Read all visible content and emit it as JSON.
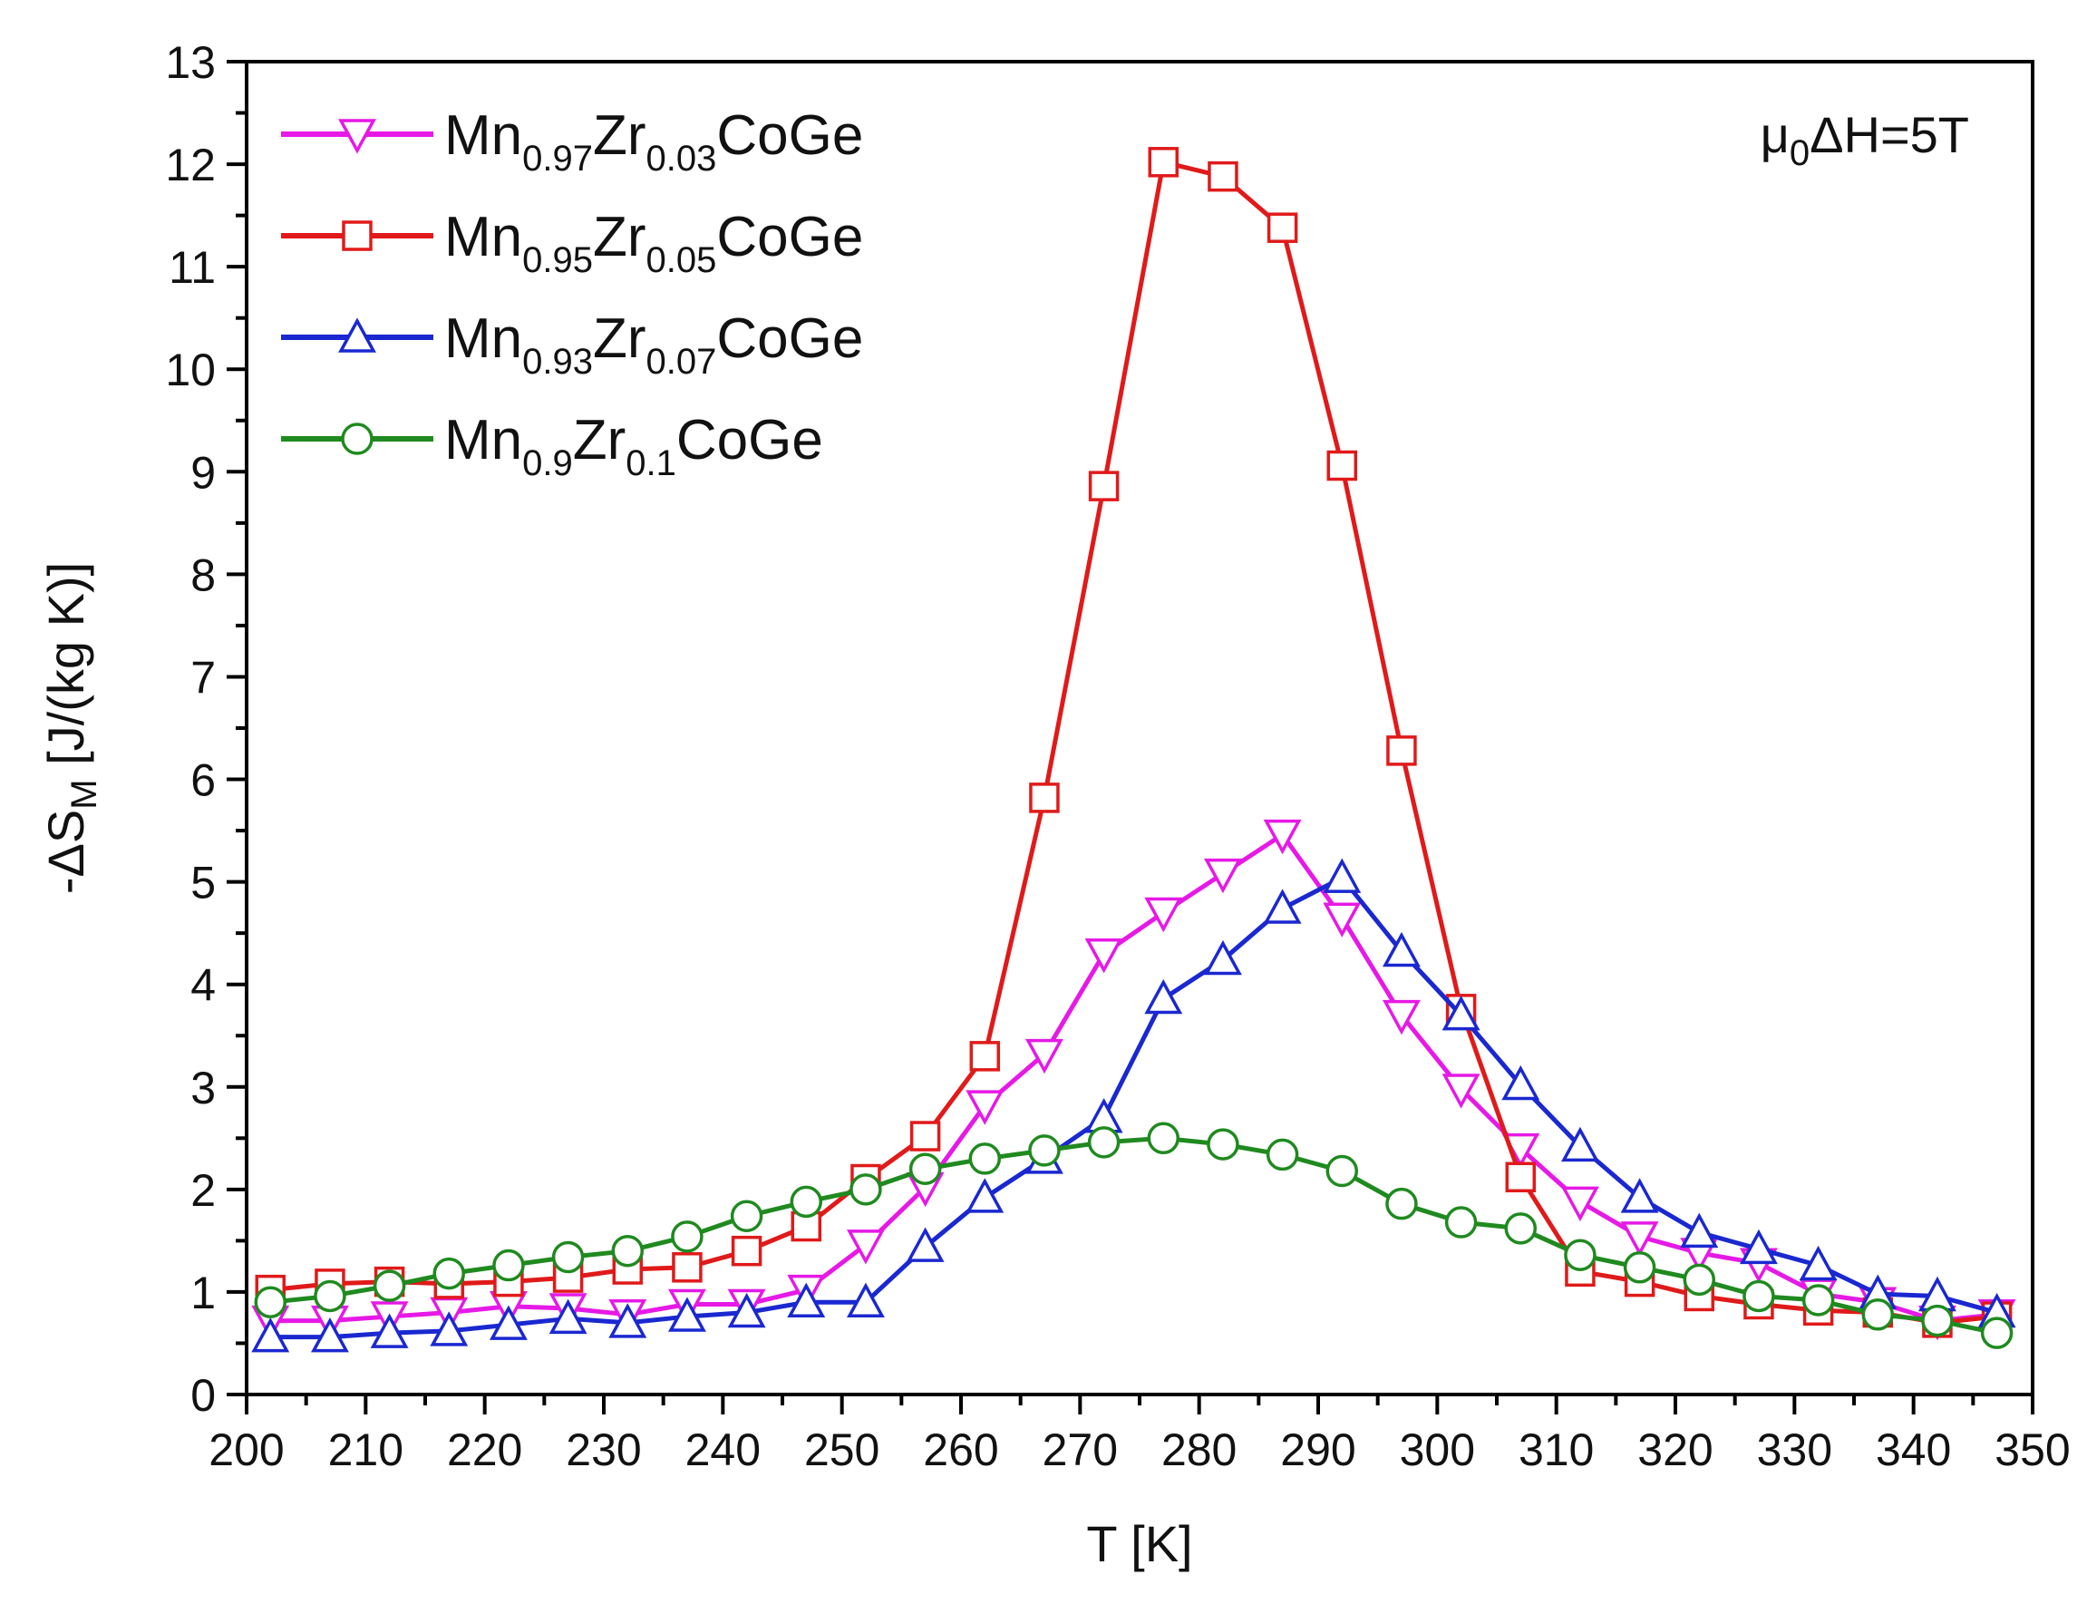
{
  "chart_data": {
    "type": "line",
    "annotation": "μ0ΔH=5T",
    "xlabel": "T [K]",
    "ylabel": "-ΔSM [J/(kg K)]",
    "xlim": [
      200,
      350
    ],
    "ylim": [
      0,
      13
    ],
    "x_ticks": [
      200,
      210,
      220,
      230,
      240,
      250,
      260,
      270,
      280,
      290,
      300,
      310,
      320,
      330,
      340,
      350
    ],
    "y_ticks": [
      0,
      1,
      2,
      3,
      4,
      5,
      6,
      7,
      8,
      9,
      10,
      11,
      12,
      13
    ],
    "legend_position": "top-left",
    "x": [
      202,
      207,
      212,
      217,
      222,
      227,
      232,
      237,
      242,
      247,
      252,
      257,
      262,
      267,
      272,
      277,
      282,
      287,
      292,
      297,
      302,
      307,
      312,
      317,
      322,
      327,
      332,
      337,
      342,
      347
    ],
    "series": [
      {
        "name": "Mn0.97Zr0.03CoGe",
        "label_parts": [
          "Mn",
          "0.97",
          "Zr",
          "0.03",
          "CoGe"
        ],
        "color": "#e619e6",
        "marker": "triangle-down",
        "values": [
          0.72,
          0.72,
          0.76,
          0.8,
          0.86,
          0.84,
          0.78,
          0.88,
          0.88,
          1.02,
          1.46,
          2.02,
          2.82,
          3.32,
          4.3,
          4.7,
          5.08,
          5.46,
          4.65,
          3.7,
          2.98,
          2.4,
          1.88,
          1.54,
          1.38,
          1.28,
          0.98,
          0.9,
          0.72,
          0.78
        ]
      },
      {
        "name": "Mn0.95Zr0.05CoGe",
        "label_parts": [
          "Mn",
          "0.95",
          "Zr",
          "0.05",
          "CoGe"
        ],
        "color": "#e01a1a",
        "marker": "square",
        "values": [
          1.02,
          1.08,
          1.1,
          1.08,
          1.1,
          1.14,
          1.22,
          1.24,
          1.4,
          1.64,
          2.1,
          2.52,
          3.3,
          5.82,
          8.86,
          12.02,
          11.88,
          11.38,
          9.06,
          6.28,
          3.76,
          2.12,
          1.2,
          1.1,
          0.96,
          0.88,
          0.82,
          0.8,
          0.7,
          0.76
        ]
      },
      {
        "name": "Mn0.93Zr0.07CoGe",
        "label_parts": [
          "Mn",
          "0.93",
          "Zr",
          "0.07",
          "CoGe"
        ],
        "color": "#1a28d0",
        "marker": "triangle-up",
        "values": [
          0.56,
          0.56,
          0.6,
          0.62,
          0.68,
          0.74,
          0.7,
          0.76,
          0.8,
          0.9,
          0.9,
          1.44,
          1.92,
          2.3,
          2.7,
          3.86,
          4.24,
          4.74,
          5.04,
          4.32,
          3.7,
          3.02,
          2.42,
          1.92,
          1.58,
          1.42,
          1.26,
          0.98,
          0.96,
          0.8
        ]
      },
      {
        "name": "Mn0.9Zr0.1CoGe",
        "label_parts": [
          "Mn",
          "0.9",
          "Zr",
          "0.1",
          "CoGe"
        ],
        "color": "#1f8a1f",
        "marker": "circle",
        "values": [
          0.9,
          0.96,
          1.06,
          1.18,
          1.26,
          1.34,
          1.4,
          1.54,
          1.74,
          1.88,
          2.0,
          2.2,
          2.3,
          2.38,
          2.46,
          2.5,
          2.44,
          2.34,
          2.18,
          1.86,
          1.68,
          1.62,
          1.36,
          1.24,
          1.12,
          0.96,
          0.92,
          0.78,
          0.72,
          0.6
        ]
      }
    ]
  }
}
